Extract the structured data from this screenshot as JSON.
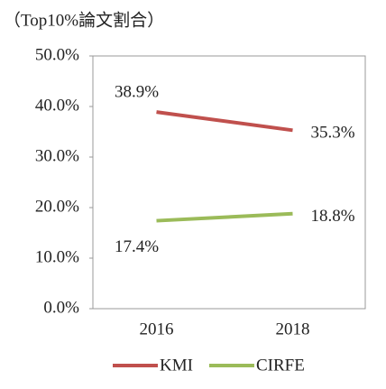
{
  "chart_data": {
    "type": "line",
    "title": "（Top10%論文割合）",
    "categories": [
      "2016",
      "2018"
    ],
    "series": [
      {
        "name": "KMI",
        "color": "#c0504d",
        "values": [
          38.9,
          35.3
        ],
        "value_labels": [
          "38.9%",
          "35.3%"
        ]
      },
      {
        "name": "CIRFE",
        "color": "#9bbb59",
        "values": [
          17.4,
          18.8
        ],
        "value_labels": [
          "17.4%",
          "18.8%"
        ]
      }
    ],
    "ylim": [
      0,
      50
    ],
    "yticks": [
      {
        "value": 0,
        "label": "0.0%"
      },
      {
        "value": 10,
        "label": "10.0%"
      },
      {
        "value": 20,
        "label": "20.0%"
      },
      {
        "value": 30,
        "label": "30.0%"
      },
      {
        "value": 40,
        "label": "40.0%"
      },
      {
        "value": 50,
        "label": "50.0%"
      }
    ],
    "grid": false,
    "legend": "bottom"
  }
}
